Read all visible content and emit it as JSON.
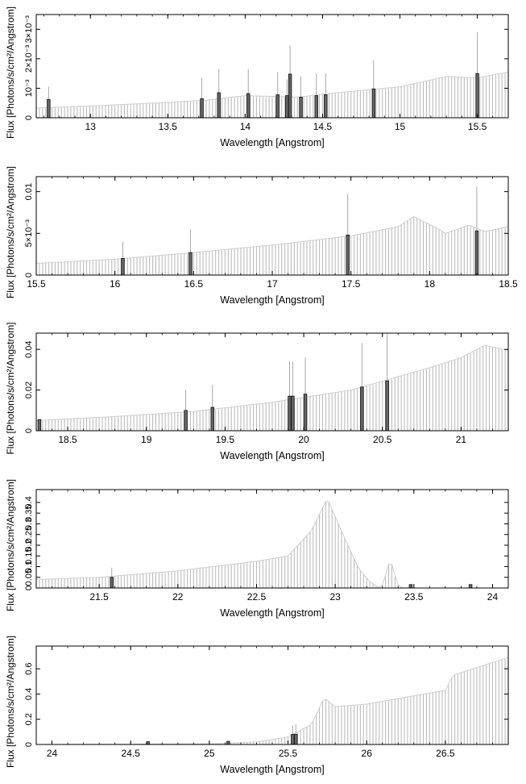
{
  "chart_data": [
    {
      "type": "bar",
      "xlabel": "Wavelength [Angstrom]",
      "ylabel": "Flux [Photons/s/cm²/Angstrom]",
      "xlim": [
        12.65,
        15.7
      ],
      "ylim": [
        0,
        0.0035
      ],
      "xticks": [
        13,
        13.5,
        14,
        14.5,
        15,
        15.5
      ],
      "xtick_labels": [
        "13",
        "13.5",
        "14",
        "14.5",
        "15",
        "15.5"
      ],
      "yticks": [
        0,
        0.001,
        0.002,
        0.003
      ],
      "ytick_labels": [
        "0",
        "10⁻³",
        "2×10⁻³",
        "3×10⁻³"
      ],
      "continuum": [
        [
          12.65,
          0.00033
        ],
        [
          13.0,
          0.0004
        ],
        [
          13.5,
          0.00052
        ],
        [
          13.75,
          0.0006
        ],
        [
          14.0,
          0.00075
        ],
        [
          14.2,
          0.00072
        ],
        [
          14.35,
          0.0007
        ],
        [
          14.5,
          0.0008
        ],
        [
          15.0,
          0.00105
        ],
        [
          15.3,
          0.0014
        ],
        [
          15.5,
          0.00135
        ],
        [
          15.7,
          0.00155
        ]
      ],
      "continuum_bumps": [],
      "lines": [
        {
          "x": 12.73,
          "y": 0.00062,
          "ymax": 0.00105
        },
        {
          "x": 13.72,
          "y": 0.00065,
          "ymax": 0.00135
        },
        {
          "x": 13.83,
          "y": 0.00085,
          "ymax": 0.00165
        },
        {
          "x": 14.02,
          "y": 0.00082,
          "ymax": 0.00165
        },
        {
          "x": 14.21,
          "y": 0.00078,
          "ymax": 0.00155
        },
        {
          "x": 14.27,
          "y": 0.00075,
          "ymax": 0.0013
        },
        {
          "x": 14.29,
          "y": 0.00148,
          "ymax": 0.00245
        },
        {
          "x": 14.36,
          "y": 0.0007,
          "ymax": 0.0014
        },
        {
          "x": 14.46,
          "y": 0.00075,
          "ymax": 0.0015
        },
        {
          "x": 14.52,
          "y": 0.00078,
          "ymax": 0.0015
        },
        {
          "x": 14.83,
          "y": 0.00098,
          "ymax": 0.00195
        },
        {
          "x": 15.5,
          "y": 0.0015,
          "ymax": 0.0029
        }
      ]
    },
    {
      "type": "bar",
      "xlabel": "Wavelength [Angstrom]",
      "ylabel": "Flux [Photons/s/cm²/Angstrom]",
      "xlim": [
        15.5,
        18.5
      ],
      "ylim": [
        0,
        0.0118
      ],
      "xticks": [
        15.5,
        16,
        16.5,
        17,
        17.5,
        18,
        18.5
      ],
      "xtick_labels": [
        "15.5",
        "16",
        "16.5",
        "17",
        "17.5",
        "18",
        "18.5"
      ],
      "yticks": [
        0,
        0.005,
        0.01
      ],
      "ytick_labels": [
        "0",
        "5×10⁻³",
        "0.01"
      ],
      "continuum": [
        [
          15.5,
          0.0014
        ],
        [
          16.0,
          0.0019
        ],
        [
          16.5,
          0.0027
        ],
        [
          17.0,
          0.0036
        ],
        [
          17.5,
          0.0047
        ],
        [
          17.8,
          0.0058
        ],
        [
          17.9,
          0.007
        ],
        [
          18.05,
          0.0056
        ],
        [
          18.1,
          0.005
        ],
        [
          18.25,
          0.006
        ],
        [
          18.35,
          0.0052
        ],
        [
          18.5,
          0.0058
        ]
      ],
      "continuum_bumps": [],
      "lines": [
        {
          "x": 16.05,
          "y": 0.002,
          "ymax": 0.004
        },
        {
          "x": 16.48,
          "y": 0.0027,
          "ymax": 0.0055
        },
        {
          "x": 17.48,
          "y": 0.0048,
          "ymax": 0.0097
        },
        {
          "x": 18.3,
          "y": 0.0053,
          "ymax": 0.0106
        }
      ]
    },
    {
      "type": "bar",
      "xlabel": "Wavelength [Angstrom]",
      "ylabel": "Flux [Photons/s/cm²/Angstrom]",
      "xlim": [
        18.3,
        21.3
      ],
      "ylim": [
        0,
        0.048
      ],
      "xticks": [
        18.5,
        19,
        19.5,
        20,
        20.5,
        21
      ],
      "xtick_labels": [
        "18.5",
        "19",
        "19.5",
        "20",
        "20.5",
        "21"
      ],
      "yticks": [
        0,
        0.02,
        0.04
      ],
      "ytick_labels": [
        "0",
        "0.02",
        "0.04"
      ],
      "continuum": [
        [
          18.3,
          0.005
        ],
        [
          18.8,
          0.007
        ],
        [
          19.3,
          0.0095
        ],
        [
          19.8,
          0.014
        ],
        [
          20.3,
          0.02
        ],
        [
          20.8,
          0.031
        ],
        [
          21.0,
          0.036
        ],
        [
          21.15,
          0.042
        ],
        [
          21.3,
          0.0395
        ]
      ],
      "continuum_bumps": [],
      "lines": [
        {
          "x": 18.32,
          "y": 0.0055,
          "ymax": 0.0055
        },
        {
          "x": 19.25,
          "y": 0.01,
          "ymax": 0.02
        },
        {
          "x": 19.42,
          "y": 0.0115,
          "ymax": 0.0225
        },
        {
          "x": 19.91,
          "y": 0.017,
          "ymax": 0.034
        },
        {
          "x": 19.93,
          "y": 0.017,
          "ymax": 0.034
        },
        {
          "x": 20.01,
          "y": 0.018,
          "ymax": 0.036
        },
        {
          "x": 20.37,
          "y": 0.0215,
          "ymax": 0.043
        },
        {
          "x": 20.53,
          "y": 0.0245,
          "ymax": 0.049
        }
      ]
    },
    {
      "type": "bar",
      "xlabel": "Wavelength [Angstrom]",
      "ylabel": "Flux [Photons/s/cm²/Angstrom]",
      "xlim": [
        21.1,
        24.1
      ],
      "ylim": [
        0,
        0.46
      ],
      "xticks": [
        21.5,
        22,
        22.5,
        23,
        23.5,
        24
      ],
      "xtick_labels": [
        "21.5",
        "22",
        "22.5",
        "23",
        "23.5",
        "24"
      ],
      "yticks": [
        0,
        0.05,
        0.1,
        0.15,
        0.2,
        0.25,
        0.3,
        0.35,
        0.4
      ],
      "ytick_labels": [
        "0",
        "0.05",
        "0.1",
        "0.15",
        "0.2",
        "0.25",
        "0.3",
        "0.35",
        "0.4"
      ],
      "continuum": [
        [
          21.1,
          0.04
        ],
        [
          21.5,
          0.05
        ],
        [
          22.0,
          0.08
        ],
        [
          22.5,
          0.125
        ],
        [
          22.7,
          0.15
        ],
        [
          22.85,
          0.27
        ],
        [
          22.95,
          0.42
        ],
        [
          23.05,
          0.25
        ],
        [
          23.15,
          0.09
        ],
        [
          23.22,
          0.03
        ],
        [
          23.28,
          0.0
        ],
        [
          24.1,
          0.0
        ]
      ],
      "continuum_bumps": [
        {
          "x": 23.35,
          "height": 0.12,
          "width": 0.025
        }
      ],
      "lines": [
        {
          "x": 21.58,
          "y": 0.05,
          "ymax": 0.095
        },
        {
          "x": 23.48,
          "y": 0.016,
          "ymax": 0.016
        },
        {
          "x": 23.86,
          "y": 0.016,
          "ymax": 0.016
        }
      ]
    },
    {
      "type": "bar",
      "xlabel": "Wavelength [Angstrom]",
      "ylabel": "Flux [Photons/s/cm²/Angstrom]",
      "xlim": [
        23.9,
        26.9
      ],
      "ylim": [
        0,
        0.78
      ],
      "xticks": [
        24,
        24.5,
        25,
        25.5,
        26,
        26.5
      ],
      "xtick_labels": [
        "24",
        "24.5",
        "25",
        "25.5",
        "26",
        "26.5"
      ],
      "yticks": [
        0,
        0.2,
        0.4,
        0.6
      ],
      "ytick_labels": [
        "0",
        "0.2",
        "0.4",
        "0.6"
      ],
      "continuum": [
        [
          23.9,
          0.0
        ],
        [
          25.0,
          0.005
        ],
        [
          25.3,
          0.02
        ],
        [
          25.5,
          0.06
        ],
        [
          25.65,
          0.16
        ],
        [
          25.73,
          0.37
        ],
        [
          25.8,
          0.3
        ],
        [
          26.0,
          0.32
        ],
        [
          26.5,
          0.43
        ],
        [
          26.55,
          0.55
        ],
        [
          26.9,
          0.69
        ]
      ],
      "continuum_bumps": [],
      "lines": [
        {
          "x": 24.61,
          "y": 0.022,
          "ymax": 0.022
        },
        {
          "x": 25.12,
          "y": 0.025,
          "ymax": 0.025
        },
        {
          "x": 25.53,
          "y": 0.08,
          "ymax": 0.15
        },
        {
          "x": 25.55,
          "y": 0.08,
          "ymax": 0.16
        }
      ]
    }
  ]
}
